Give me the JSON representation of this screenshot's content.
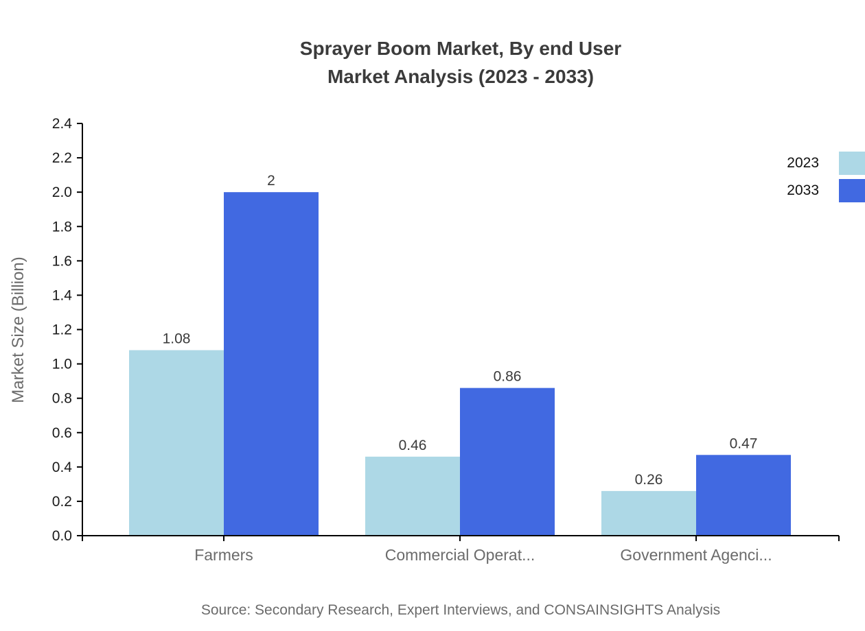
{
  "chart_data": {
    "type": "bar",
    "title": "Sprayer Boom Market, By end User Market Analysis (2023 - 2033)",
    "title_lines": [
      "Sprayer Boom Market, By end User",
      "Market Analysis (2023 - 2033)"
    ],
    "ylabel": "Market Size (Billion)",
    "xlabel": "",
    "categories": [
      "Farmers",
      "Commercial Operat...",
      "Government Agenci..."
    ],
    "series": [
      {
        "name": "2023",
        "color": "#add8e6",
        "values": [
          1.08,
          0.46,
          0.26
        ]
      },
      {
        "name": "2033",
        "color": "#4169e1",
        "values": [
          2,
          0.86,
          0.47
        ]
      }
    ],
    "value_labels": [
      [
        "1.08",
        "0.46",
        "0.26"
      ],
      [
        "2",
        "0.86",
        "0.47"
      ]
    ],
    "ylim": [
      0,
      2.4
    ],
    "ytick_step": 0.2,
    "ytick_labels": [
      "0.0",
      "0.2",
      "0.4",
      "0.6",
      "0.8",
      "1.0",
      "1.2",
      "1.4",
      "1.6",
      "1.8",
      "2.0",
      "2.2",
      "2.4"
    ],
    "grid": false,
    "legend_position": "top-right",
    "axis_color": "#000000",
    "title_color": "#3b3b3b",
    "tick_label_color": "#1a1a1a",
    "category_label_color": "#6b6b6b",
    "axis_title_color": "#6b6b6b",
    "datalabel_color": "#3a3a3a"
  },
  "footer": {
    "source": "Source: Secondary Research, Expert Interviews, and CONSAINSIGHTS Analysis"
  }
}
